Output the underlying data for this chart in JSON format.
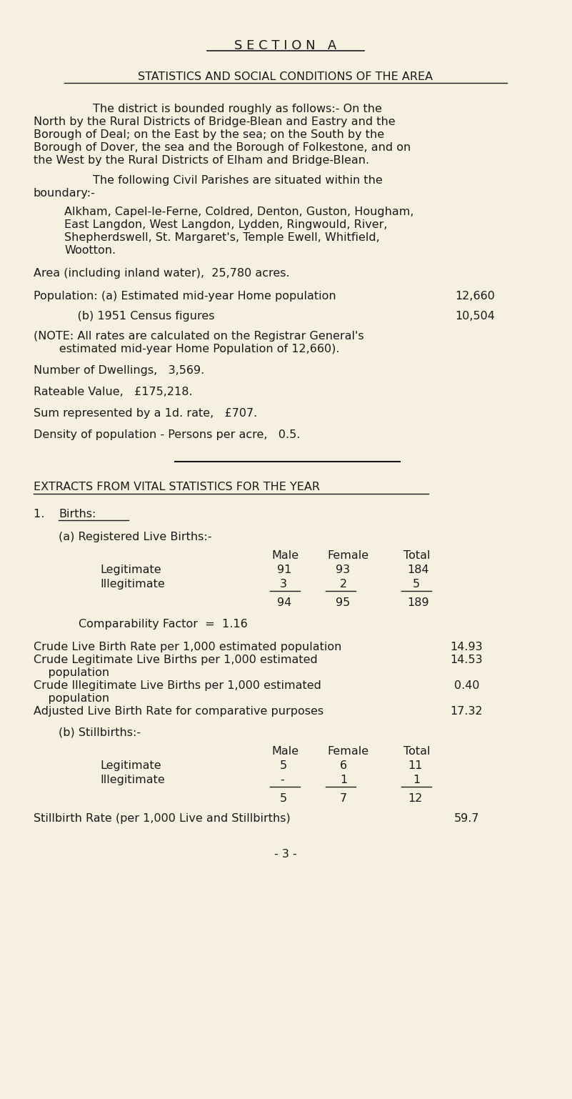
{
  "bg_color": "#f5f0e0",
  "text_color": "#1a1a1a",
  "font_family": "Courier New",
  "title1": "S E C T I O N   A",
  "title2": "STATISTICS AND SOCIAL CONDITIONS OF THE AREA",
  "para1_indent": "The district is bounded roughly as follows:- On the",
  "para1_rest": [
    "North by the Rural Districts of Bridge-Blean and Eastry and the",
    "Borough of Deal; on the East by the sea; on the South by the",
    "Borough of Dover, the sea and the Borough of Folkestone, and on",
    "the West by the Rural Districts of Elham and Bridge-Blean."
  ],
  "para2_indent": "The following Civil Parishes are situated within the",
  "para2_rest": [
    "boundary:-"
  ],
  "para3": [
    "Alkham, Capel-le-Ferne, Coldred, Denton, Guston, Hougham,",
    "East Langdon, West Langdon, Lydden, Ringwould, River,",
    "Shepherdswell, St. Margaret's, Temple Ewell, Whitfield,",
    "Wootton."
  ],
  "line1": "Area (including inland water),  25,780 acres.",
  "line2a_label": "Population: (a) Estimated mid-year Home population",
  "line2a_value": "12,660",
  "line2b_label": "            (b) 1951 Census figures",
  "line2b_value": "10,504",
  "line3a": "(NOTE: All rates are calculated on the Registrar General's",
  "line3b": "       estimated mid-year Home Population of 12,660).",
  "line4": "Number of Dwellings,   3,569.",
  "line5": "Rateable Value,   £175,218.",
  "line6": "Sum represented by a 1d. rate,   £707.",
  "line7": "Density of population - Persons per acre,   0.5.",
  "section_heading": "EXTRACTS FROM VITAL STATISTICS FOR THE YEAR",
  "crude1_label": "Crude Live Birth Rate per 1,000 estimated population",
  "crude1_value": "14.93",
  "crude2_label": "Crude Legitimate Live Births per 1,000 estimated",
  "crude2_value": "14.53",
  "crude2_cont": "    population",
  "crude3_label": "Crude Illegitimate Live Births per 1,000 estimated",
  "crude3_value": "0.40",
  "crude3_cont": "    population",
  "crude4_label": "Adjusted Live Birth Rate for comparative purposes",
  "crude4_value": "17.32",
  "still_rate_label": "Stillbirth Rate (per 1,000 Live and Stillbirths)",
  "still_rate_value": "59.7",
  "page_footer": "- 3 -"
}
